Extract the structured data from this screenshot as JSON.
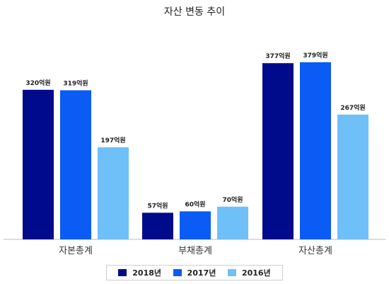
{
  "chart_data": {
    "type": "bar",
    "title": "자산 변동 추이",
    "categories": [
      "자본총계",
      "부채총계",
      "자산총계"
    ],
    "series": [
      {
        "name": "2018년",
        "color": "#000b8c",
        "values": [
          320,
          57,
          377
        ],
        "labels": [
          "320억원",
          "57억원",
          "377억원"
        ]
      },
      {
        "name": "2017년",
        "color": "#0a5cf5",
        "values": [
          319,
          60,
          379
        ],
        "labels": [
          "319억원",
          "60억원",
          "379억원"
        ]
      },
      {
        "name": "2016년",
        "color": "#6fc0f8",
        "values": [
          197,
          70,
          267
        ],
        "labels": [
          "197억원",
          "70억원",
          "267억원"
        ]
      }
    ],
    "ylim": [
      0,
      400
    ],
    "grid": false,
    "legend_position": "bottom"
  }
}
